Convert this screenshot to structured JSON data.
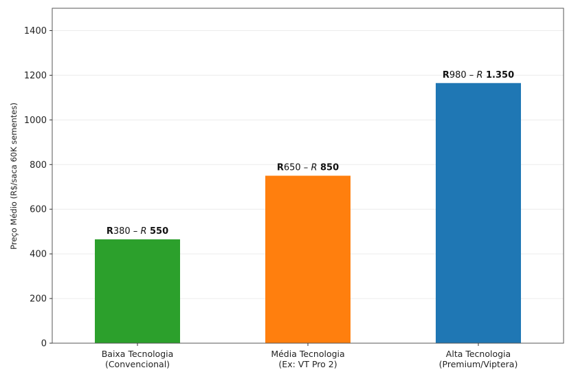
{
  "chart_data": {
    "type": "bar",
    "title": "",
    "xlabel": "",
    "ylabel": "Preço Médio (R$/saca 60K sementes)",
    "ylim": [
      0,
      1500
    ],
    "yticks": [
      0,
      200,
      400,
      600,
      800,
      1000,
      1200,
      1400
    ],
    "grid": "y",
    "categories": [
      [
        "Baixa Tecnologia",
        "(Convencional)"
      ],
      [
        "Média Tecnologia",
        "(Ex: VT Pro 2)"
      ],
      [
        "Alta Tecnologia",
        "(Premium/Viptera)"
      ]
    ],
    "values": [
      465,
      750,
      1165
    ],
    "colors": [
      "#2ca02c",
      "#ff7f0e",
      "#1f77b4"
    ],
    "data_labels": [
      [
        {
          "t": "R",
          "s": "b"
        },
        {
          "t": "380 – ",
          "s": ""
        },
        {
          "t": "R",
          "s": "i"
        },
        {
          "t": " 550",
          "s": "b"
        }
      ],
      [
        {
          "t": "R",
          "s": "b"
        },
        {
          "t": "650 – ",
          "s": ""
        },
        {
          "t": "R",
          "s": "i"
        },
        {
          "t": " 850",
          "s": "b"
        }
      ],
      [
        {
          "t": "R",
          "s": "b"
        },
        {
          "t": "980 – ",
          "s": ""
        },
        {
          "t": "R",
          "s": "i"
        },
        {
          "t": " 1.350",
          "s": "b"
        }
      ]
    ]
  }
}
